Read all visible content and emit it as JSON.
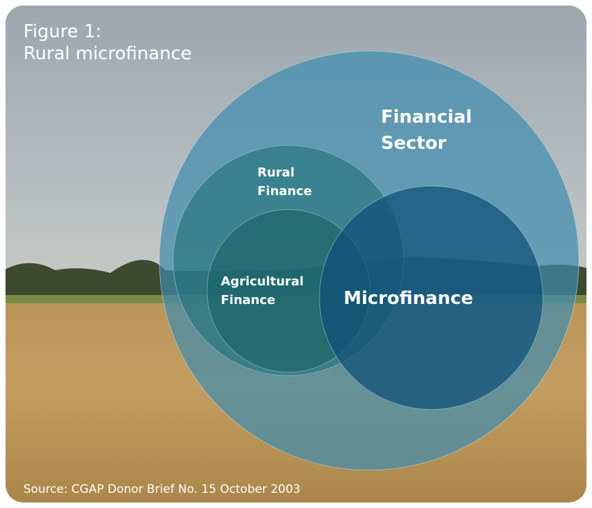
{
  "title": {
    "lines": [
      "Figure 1:",
      "Rural microfinance"
    ]
  },
  "nodes": [
    {
      "label": [
        "Financial",
        "Sector"
      ]
    },
    {
      "label": [
        "Rural",
        "Finance"
      ]
    },
    {
      "label": [
        "Agricultural",
        "Finance"
      ]
    },
    {
      "label": [
        "Microfinance"
      ]
    }
  ],
  "source": "Source: CGAP Donor Brief No. 15 October 2003"
}
